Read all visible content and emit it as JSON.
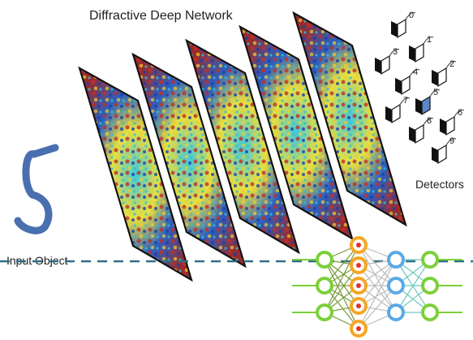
{
  "title": "Diffractive Deep Network",
  "input_label": "Input Object",
  "detectors_label": "Detectors",
  "detectors": [
    {
      "label": "0"
    },
    {
      "label": "1"
    },
    {
      "label": "2"
    },
    {
      "label": "3"
    },
    {
      "label": "4"
    },
    {
      "label": "5"
    },
    {
      "label": "6"
    },
    {
      "label": "7"
    },
    {
      "label": "8"
    },
    {
      "label": "9"
    }
  ]
}
